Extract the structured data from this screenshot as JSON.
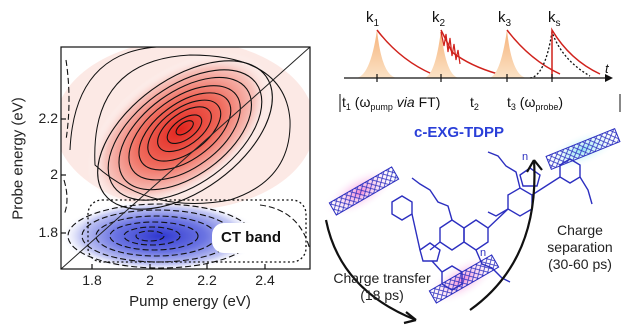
{
  "plot": {
    "xlabel": "Pump energy (eV)",
    "ylabel": "Probe energy (eV)",
    "xticks": [
      "1.8",
      "2",
      "2.2",
      "2.4"
    ],
    "yticks": [
      "2.2",
      "2",
      "1.8"
    ],
    "annotation": "CT band",
    "colors": {
      "positive": "#e8302a",
      "negative": "#3a44d6"
    }
  },
  "pulse_scheme": {
    "labels": {
      "k1": "k",
      "k1_sub": "1",
      "k2": "k",
      "k2_sub": "2",
      "k3": "k",
      "k3_sub": "3",
      "ks": "k",
      "ks_sub": "s",
      "t": "t"
    },
    "t1": "t",
    "t1_sub": "1",
    "t1_a": " (ω",
    "t1_pump": "pump",
    "t1_via": " via",
    "t1_ft": " FT)",
    "t2": "t",
    "t2_sub": "2",
    "t3": "t",
    "t3_sub": "3",
    "t3_a": " (ω",
    "t3_probe": "probe",
    "t3_b": ")"
  },
  "molecule": {
    "name": "c-EXG-TDPP",
    "n_top": "n",
    "n_bottom": "n",
    "charge_transfer_label": "Charge transfer",
    "charge_transfer_time": "(18 ps)",
    "charge_separation_label": "Charge",
    "charge_separation_label2": "separation",
    "charge_separation_time": "(30-60 ps)"
  }
}
